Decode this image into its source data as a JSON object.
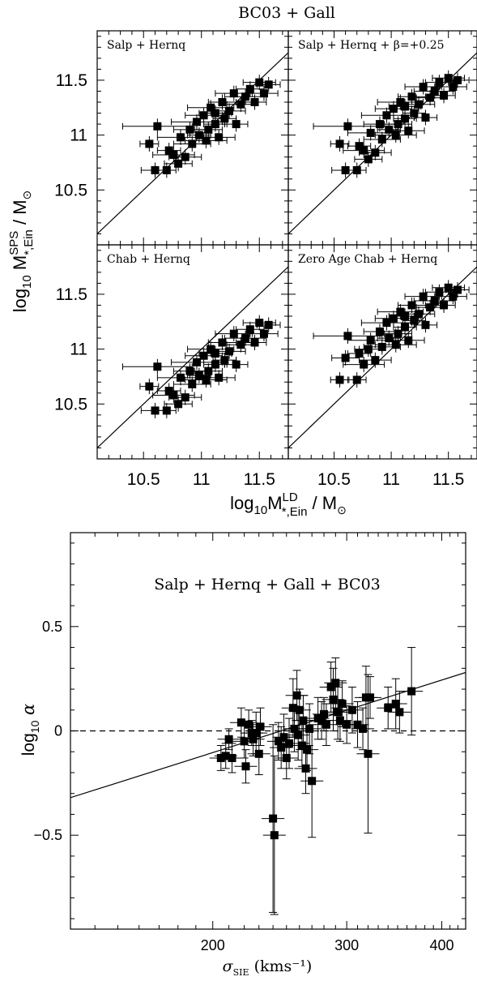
{
  "figure": {
    "top_title": "BC03 + Gall",
    "top_xlabel": "log10 M^LD_*,Ein / M⊙",
    "top_ylabel": "log10 M^SPS_*,Ein / M⊙",
    "bottom_xlabel": "σ_SIE (kms⁻¹)",
    "bottom_ylabel": "log10 α"
  },
  "chart_data": [
    {
      "type": "scatter",
      "panel": "top-left",
      "label": "Salp + Hernq",
      "xlim": [
        10.1,
        11.75
      ],
      "ylim": [
        10.0,
        11.95
      ],
      "x_ticks": [
        "10.5",
        "11",
        "11.5"
      ],
      "y_ticks": [
        "10.5",
        "11",
        "11.5"
      ],
      "reference_line": "one-to-one",
      "points": [
        [
          10.55,
          10.92,
          0.08
        ],
        [
          10.6,
          10.68,
          0.12
        ],
        [
          10.62,
          11.08,
          0.3
        ],
        [
          10.7,
          10.68,
          0.08
        ],
        [
          10.72,
          10.86,
          0.1
        ],
        [
          10.76,
          10.82,
          0.18
        ],
        [
          10.8,
          10.74,
          0.12
        ],
        [
          10.82,
          10.98,
          0.2
        ],
        [
          10.86,
          10.8,
          0.14
        ],
        [
          10.9,
          11.05,
          0.14
        ],
        [
          10.92,
          10.92,
          0.16
        ],
        [
          10.96,
          11.12,
          0.22
        ],
        [
          10.98,
          11.0,
          0.1
        ],
        [
          11.02,
          11.18,
          0.16
        ],
        [
          11.06,
          11.05,
          0.12
        ],
        [
          11.08,
          11.25,
          0.2
        ],
        [
          11.12,
          11.1,
          0.1
        ],
        [
          11.15,
          10.98,
          0.14
        ],
        [
          11.18,
          11.3,
          0.12
        ],
        [
          11.2,
          11.15,
          0.1
        ],
        [
          11.24,
          11.22,
          0.14
        ],
        [
          11.28,
          11.38,
          0.16
        ],
        [
          11.3,
          11.1,
          0.1
        ],
        [
          11.34,
          11.28,
          0.12
        ],
        [
          11.38,
          11.35,
          0.18
        ],
        [
          11.42,
          11.42,
          0.12
        ],
        [
          11.46,
          11.3,
          0.1
        ],
        [
          11.5,
          11.48,
          0.14
        ],
        [
          11.54,
          11.38,
          0.12
        ],
        [
          11.58,
          11.46,
          0.1
        ],
        [
          11.04,
          10.95,
          0.18
        ],
        [
          11.12,
          11.2,
          0.14
        ]
      ]
    },
    {
      "type": "scatter",
      "panel": "top-right",
      "label": "Salp + Hernq + β=+0.25",
      "xlim": [
        10.1,
        11.75
      ],
      "ylim": [
        10.0,
        11.95
      ],
      "reference_line": "one-to-one",
      "points": [
        [
          10.55,
          10.92,
          0.08
        ],
        [
          10.6,
          10.68,
          0.12
        ],
        [
          10.62,
          11.08,
          0.3
        ],
        [
          10.7,
          10.68,
          0.08
        ],
        [
          10.72,
          10.9,
          0.1
        ],
        [
          10.76,
          10.86,
          0.18
        ],
        [
          10.8,
          10.78,
          0.12
        ],
        [
          10.82,
          11.02,
          0.2
        ],
        [
          10.86,
          10.84,
          0.14
        ],
        [
          10.9,
          11.1,
          0.14
        ],
        [
          10.92,
          10.96,
          0.16
        ],
        [
          10.96,
          11.18,
          0.22
        ],
        [
          10.98,
          11.05,
          0.1
        ],
        [
          11.02,
          11.24,
          0.16
        ],
        [
          11.06,
          11.1,
          0.12
        ],
        [
          11.08,
          11.3,
          0.2
        ],
        [
          11.12,
          11.15,
          0.1
        ],
        [
          11.15,
          11.04,
          0.14
        ],
        [
          11.18,
          11.35,
          0.12
        ],
        [
          11.2,
          11.2,
          0.1
        ],
        [
          11.24,
          11.28,
          0.14
        ],
        [
          11.28,
          11.44,
          0.16
        ],
        [
          11.3,
          11.16,
          0.1
        ],
        [
          11.34,
          11.34,
          0.12
        ],
        [
          11.38,
          11.4,
          0.18
        ],
        [
          11.42,
          11.48,
          0.12
        ],
        [
          11.46,
          11.36,
          0.1
        ],
        [
          11.5,
          11.52,
          0.14
        ],
        [
          11.54,
          11.44,
          0.12
        ],
        [
          11.58,
          11.5,
          0.1
        ],
        [
          11.04,
          11.0,
          0.18
        ],
        [
          11.12,
          11.26,
          0.14
        ]
      ]
    },
    {
      "type": "scatter",
      "panel": "bottom-left",
      "label": "Chab + Hernq",
      "xlim": [
        10.1,
        11.75
      ],
      "ylim": [
        10.0,
        11.95
      ],
      "reference_line": "one-to-one",
      "points": [
        [
          10.55,
          10.66,
          0.08
        ],
        [
          10.6,
          10.44,
          0.12
        ],
        [
          10.62,
          10.84,
          0.3
        ],
        [
          10.7,
          10.44,
          0.08
        ],
        [
          10.72,
          10.62,
          0.1
        ],
        [
          10.76,
          10.58,
          0.18
        ],
        [
          10.8,
          10.5,
          0.12
        ],
        [
          10.82,
          10.74,
          0.2
        ],
        [
          10.86,
          10.56,
          0.14
        ],
        [
          10.9,
          10.8,
          0.14
        ],
        [
          10.92,
          10.68,
          0.16
        ],
        [
          10.96,
          10.88,
          0.22
        ],
        [
          10.98,
          10.76,
          0.1
        ],
        [
          11.02,
          10.94,
          0.16
        ],
        [
          11.06,
          10.8,
          0.12
        ],
        [
          11.08,
          11.0,
          0.2
        ],
        [
          11.12,
          10.86,
          0.1
        ],
        [
          11.15,
          10.74,
          0.14
        ],
        [
          11.18,
          11.06,
          0.12
        ],
        [
          11.2,
          10.9,
          0.1
        ],
        [
          11.24,
          10.98,
          0.14
        ],
        [
          11.28,
          11.14,
          0.16
        ],
        [
          11.3,
          10.86,
          0.1
        ],
        [
          11.34,
          11.04,
          0.12
        ],
        [
          11.38,
          11.1,
          0.18
        ],
        [
          11.42,
          11.18,
          0.12
        ],
        [
          11.46,
          11.06,
          0.1
        ],
        [
          11.5,
          11.24,
          0.14
        ],
        [
          11.54,
          11.14,
          0.12
        ],
        [
          11.58,
          11.22,
          0.1
        ],
        [
          11.04,
          10.72,
          0.18
        ],
        [
          11.12,
          10.96,
          0.14
        ]
      ]
    },
    {
      "type": "scatter",
      "panel": "bottom-right",
      "label": "Zero Age Chab + Hernq",
      "xlim": [
        10.1,
        11.75
      ],
      "ylim": [
        10.0,
        11.95
      ],
      "reference_line": "one-to-one",
      "points": [
        [
          10.55,
          10.72,
          0.08
        ],
        [
          10.6,
          10.92,
          0.12
        ],
        [
          10.62,
          11.12,
          0.3
        ],
        [
          10.7,
          10.72,
          0.08
        ],
        [
          10.72,
          10.96,
          0.1
        ],
        [
          10.76,
          10.86,
          0.18
        ],
        [
          10.8,
          11.0,
          0.12
        ],
        [
          10.82,
          11.08,
          0.2
        ],
        [
          10.86,
          10.9,
          0.14
        ],
        [
          10.9,
          11.16,
          0.14
        ],
        [
          10.92,
          11.02,
          0.16
        ],
        [
          10.96,
          11.24,
          0.22
        ],
        [
          10.98,
          11.1,
          0.1
        ],
        [
          11.02,
          11.28,
          0.16
        ],
        [
          11.06,
          11.14,
          0.12
        ],
        [
          11.08,
          11.34,
          0.2
        ],
        [
          11.12,
          11.2,
          0.1
        ],
        [
          11.15,
          11.08,
          0.14
        ],
        [
          11.18,
          11.4,
          0.12
        ],
        [
          11.2,
          11.26,
          0.1
        ],
        [
          11.24,
          11.32,
          0.14
        ],
        [
          11.28,
          11.48,
          0.16
        ],
        [
          11.3,
          11.22,
          0.1
        ],
        [
          11.34,
          11.38,
          0.12
        ],
        [
          11.38,
          11.44,
          0.18
        ],
        [
          11.42,
          11.52,
          0.12
        ],
        [
          11.46,
          11.4,
          0.1
        ],
        [
          11.5,
          11.56,
          0.14
        ],
        [
          11.54,
          11.48,
          0.12
        ],
        [
          11.58,
          11.54,
          0.1
        ],
        [
          11.04,
          11.04,
          0.18
        ],
        [
          11.12,
          11.3,
          0.14
        ]
      ]
    },
    {
      "type": "scatter",
      "panel": "bottom",
      "label": "Salp + Hernq + Gall + BC03",
      "x_scale": "log",
      "xlim": [
        130,
        430
      ],
      "ylim": [
        -0.95,
        0.95
      ],
      "x_ticks": [
        "200",
        "300",
        "400"
      ],
      "y_ticks": [
        "0.5",
        "0",
        "-0.5"
      ],
      "zero_line": "dashed",
      "fit_line": [
        [
          130,
          -0.32
        ],
        [
          430,
          0.28
        ]
      ],
      "points": [
        [
          205,
          -0.13,
          0.06
        ],
        [
          208,
          -0.12,
          0.06
        ],
        [
          210,
          -0.04,
          0.05
        ],
        [
          212,
          -0.13,
          0.07
        ],
        [
          218,
          0.04,
          0.07
        ],
        [
          220,
          -0.05,
          0.08
        ],
        [
          221,
          -0.17,
          0.08
        ],
        [
          223,
          0.03,
          0.07
        ],
        [
          225,
          -0.01,
          0.06
        ],
        [
          226,
          -0.04,
          0.08
        ],
        [
          228,
          -0.01,
          0.1
        ],
        [
          230,
          -0.11,
          0.1
        ],
        [
          231,
          0.02,
          0.09
        ],
        [
          240,
          -0.42,
          0.45
        ],
        [
          241,
          -0.5,
          0.38
        ],
        [
          244,
          -0.05,
          0.09
        ],
        [
          246,
          -0.08,
          0.1
        ],
        [
          248,
          -0.03,
          0.11
        ],
        [
          250,
          -0.13,
          0.1
        ],
        [
          252,
          -0.06,
          0.12
        ],
        [
          255,
          0.11,
          0.14
        ],
        [
          256,
          0.01,
          0.11
        ],
        [
          258,
          0.17,
          0.12
        ],
        [
          259,
          -0.02,
          0.12
        ],
        [
          260,
          0.1,
          0.1
        ],
        [
          262,
          -0.07,
          0.1
        ],
        [
          263,
          0.05,
          0.12
        ],
        [
          265,
          -0.18,
          0.12
        ],
        [
          266,
          -0.09,
          0.1
        ],
        [
          268,
          0.01,
          0.12
        ],
        [
          270,
          -0.24,
          0.27
        ],
        [
          275,
          0.06,
          0.1
        ],
        [
          278,
          0.05,
          0.09
        ],
        [
          280,
          0.08,
          0.08
        ],
        [
          282,
          0.03,
          0.1
        ],
        [
          286,
          0.21,
          0.12
        ],
        [
          288,
          0.15,
          0.15
        ],
        [
          290,
          0.23,
          0.12
        ],
        [
          292,
          0.09,
          0.13
        ],
        [
          294,
          0.05,
          0.1
        ],
        [
          296,
          0.13,
          0.11
        ],
        [
          300,
          0.03,
          0.09
        ],
        [
          305,
          0.1,
          0.11
        ],
        [
          310,
          0.03,
          0.11
        ],
        [
          315,
          0.01,
          0.1
        ],
        [
          318,
          0.16,
          0.15
        ],
        [
          320,
          -0.11,
          0.38
        ],
        [
          322,
          0.16,
          0.1
        ],
        [
          340,
          0.11,
          0.1
        ],
        [
          348,
          0.13,
          0.12
        ],
        [
          352,
          0.09,
          0.1
        ],
        [
          365,
          0.19,
          0.21
        ]
      ]
    }
  ]
}
